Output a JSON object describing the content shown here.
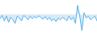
{
  "chart_data": {
    "type": "area",
    "values": [
      -1.2,
      -0.3,
      -1.8,
      -0.5,
      -2.2,
      -0.8,
      -1.5,
      -2.5,
      -0.5,
      -1.0,
      -1.8,
      -0.3,
      -0.8,
      -1.5,
      -0.5,
      -1.2,
      -0.6,
      -1.0,
      -0.4,
      -0.9,
      -1.3,
      -0.6,
      -1.5,
      -0.8,
      -1.8,
      -1.2,
      -2.0,
      -1.0,
      -1.5,
      -0.8,
      -1.2,
      -1.8,
      -0.5,
      -1.5,
      -0.8,
      -2.5,
      2.5,
      -0.5,
      -4.5,
      0.5,
      -1.0,
      -0.5,
      -1.5,
      -1.0,
      -0.5,
      -1.8
    ],
    "color": "#5aaee8",
    "ylim": [
      -6,
      4
    ],
    "grid": false,
    "tick_labels": false
  }
}
